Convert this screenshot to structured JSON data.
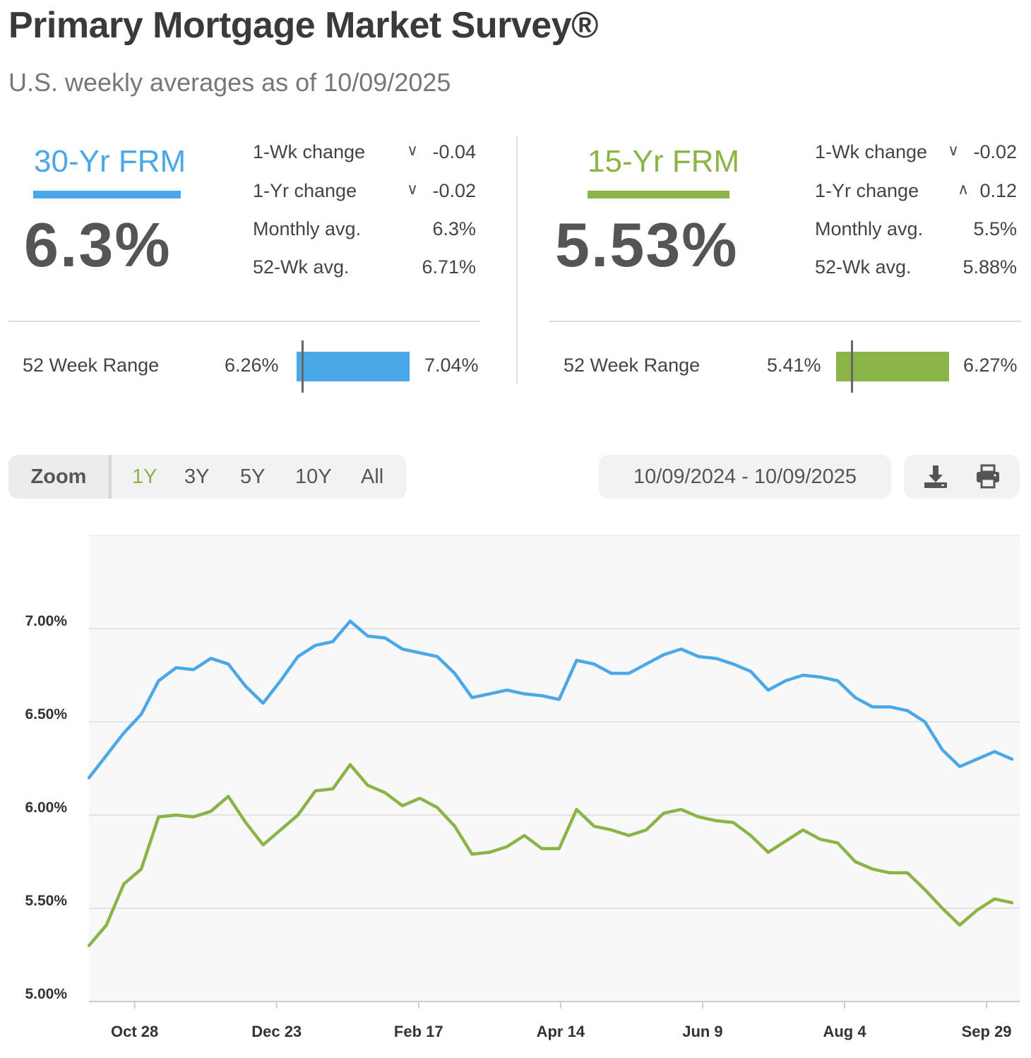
{
  "header": {
    "title": "Primary Mortgage Market Survey®",
    "subtitle": "U.S. weekly averages as of 10/09/2025"
  },
  "colors": {
    "frm30": "#4aa8e8",
    "frm15": "#8ab446"
  },
  "frm30": {
    "name": "30-Yr FRM",
    "rate": "6.3%",
    "stats": [
      {
        "label": "1-Wk change",
        "arrow": "down",
        "value": "-0.04"
      },
      {
        "label": "1-Yr change",
        "arrow": "down",
        "value": "-0.02"
      },
      {
        "label": "Monthly avg.",
        "arrow": "",
        "value": "6.3%"
      },
      {
        "label": "52-Wk avg.",
        "arrow": "",
        "value": "6.71%"
      }
    ],
    "range_label": "52 Week Range",
    "range_min": "6.26%",
    "range_max": "7.04%",
    "range": {
      "min": 6.26,
      "max": 7.04,
      "current": 6.3
    }
  },
  "frm15": {
    "name": "15-Yr FRM",
    "rate": "5.53%",
    "stats": [
      {
        "label": "1-Wk change",
        "arrow": "down",
        "value": "-0.02"
      },
      {
        "label": "1-Yr change",
        "arrow": "up",
        "value": "0.12"
      },
      {
        "label": "Monthly avg.",
        "arrow": "",
        "value": "5.5%"
      },
      {
        "label": "52-Wk avg.",
        "arrow": "",
        "value": "5.88%"
      }
    ],
    "range_label": "52 Week Range",
    "range_min": "5.41%",
    "range_max": "6.27%",
    "range": {
      "min": 5.41,
      "max": 6.27,
      "current": 5.53
    }
  },
  "controls": {
    "zoom_label": "Zoom",
    "zoom_options": [
      "1Y",
      "3Y",
      "5Y",
      "10Y",
      "All"
    ],
    "selected_zoom": "1Y",
    "date_range": "10/09/2024 - 10/09/2025",
    "download_icon": "download-icon",
    "print_icon": "print-icon"
  },
  "chart_data": {
    "type": "line",
    "x_start": "2024-10-10",
    "x_end": "2025-10-09",
    "x_tick_labels": [
      "Oct 28",
      "Dec 23",
      "Feb 17",
      "Apr 14",
      "Jun 9",
      "Aug 4",
      "Sep 29"
    ],
    "x_tick_dates": [
      "2024-10-28",
      "2024-12-23",
      "2025-02-17",
      "2025-04-14",
      "2025-06-09",
      "2025-08-04",
      "2025-09-29"
    ],
    "y_ticks": [
      5.0,
      5.5,
      6.0,
      6.5,
      7.0
    ],
    "y_tick_labels": [
      "5.00%",
      "5.50%",
      "6.00%",
      "6.50%",
      "7.00%"
    ],
    "ylim": [
      5.0,
      7.5
    ],
    "grid": true,
    "series": [
      {
        "name": "30-Yr FRM",
        "color": "#4aa8e8",
        "values": [
          6.2,
          6.32,
          6.44,
          6.54,
          6.72,
          6.79,
          6.78,
          6.84,
          6.81,
          6.69,
          6.6,
          6.72,
          6.85,
          6.91,
          6.93,
          7.04,
          6.96,
          6.95,
          6.89,
          6.87,
          6.85,
          6.76,
          6.63,
          6.65,
          6.67,
          6.65,
          6.64,
          6.62,
          6.83,
          6.81,
          6.76,
          6.76,
          6.81,
          6.86,
          6.89,
          6.85,
          6.84,
          6.81,
          6.77,
          6.67,
          6.72,
          6.75,
          6.74,
          6.72,
          6.63,
          6.58,
          6.58,
          6.56,
          6.5,
          6.35,
          6.26,
          6.3,
          6.34,
          6.3
        ]
      },
      {
        "name": "15-Yr FRM",
        "color": "#8ab446",
        "values": [
          5.3,
          5.41,
          5.63,
          5.71,
          5.99,
          6.0,
          5.99,
          6.02,
          6.1,
          5.96,
          5.84,
          5.92,
          6.0,
          6.13,
          6.14,
          6.27,
          6.16,
          6.12,
          6.05,
          6.09,
          6.04,
          5.94,
          5.79,
          5.8,
          5.83,
          5.89,
          5.82,
          5.82,
          6.03,
          5.94,
          5.92,
          5.89,
          5.92,
          6.01,
          6.03,
          5.99,
          5.97,
          5.96,
          5.89,
          5.8,
          5.86,
          5.92,
          5.87,
          5.85,
          5.75,
          5.71,
          5.69,
          5.69,
          5.6,
          5.5,
          5.41,
          5.49,
          5.55,
          5.53
        ]
      }
    ]
  }
}
